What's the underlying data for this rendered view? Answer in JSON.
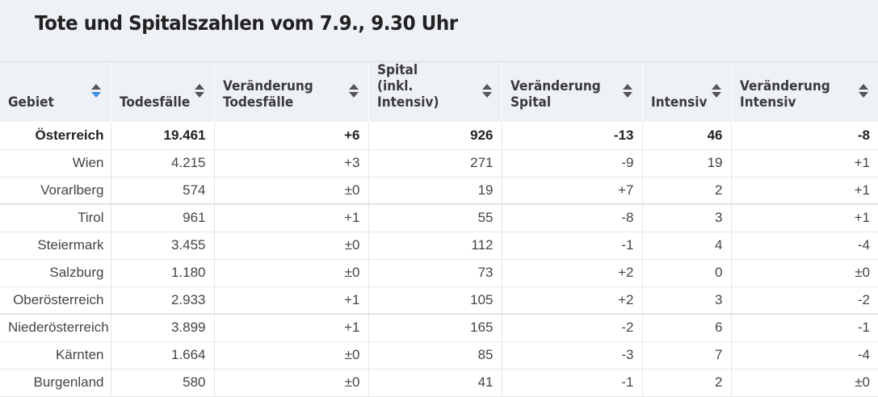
{
  "title": "Tote und Spitalszahlen vom 7.9., 9.30 Uhr",
  "columns": [
    {
      "label": "Gebiet",
      "sort_active": true
    },
    {
      "label": "Todesfälle",
      "sort_active": false
    },
    {
      "label": "Veränderung Todesfälle",
      "sort_active": false
    },
    {
      "label": "Spital (inkl. Intensiv)",
      "sort_active": false
    },
    {
      "label": "Veränderung Spital",
      "sort_active": false
    },
    {
      "label": "Intensiv",
      "sort_active": false
    },
    {
      "label": "Veränderung Intensiv",
      "sort_active": false
    }
  ],
  "rows": [
    [
      "Österreich",
      "19.461",
      "+6",
      "926",
      "-13",
      "46",
      "-8"
    ],
    [
      "Wien",
      "4.215",
      "+3",
      "271",
      "-9",
      "19",
      "+1"
    ],
    [
      "Vorarlberg",
      "574",
      "±0",
      "19",
      "+7",
      "2",
      "+1"
    ],
    [
      "Tirol",
      "961",
      "+1",
      "55",
      "-8",
      "3",
      "+1"
    ],
    [
      "Steiermark",
      "3.455",
      "±0",
      "112",
      "-1",
      "4",
      "-4"
    ],
    [
      "Salzburg",
      "1.180",
      "±0",
      "73",
      "+2",
      "0",
      "±0"
    ],
    [
      "Oberösterreich",
      "2.933",
      "+1",
      "105",
      "+2",
      "3",
      "-2"
    ],
    [
      "Niederösterreich",
      "3.899",
      "+1",
      "165",
      "-2",
      "6",
      "-1"
    ],
    [
      "Kärnten",
      "1.664",
      "±0",
      "85",
      "-3",
      "7",
      "-4"
    ],
    [
      "Burgenland",
      "580",
      "±0",
      "41",
      "-1",
      "2",
      "±0"
    ]
  ],
  "colors": {
    "header_bg": "#eef1f6",
    "sort_active": "#3d8fe0",
    "sort_inactive": "#555555"
  }
}
